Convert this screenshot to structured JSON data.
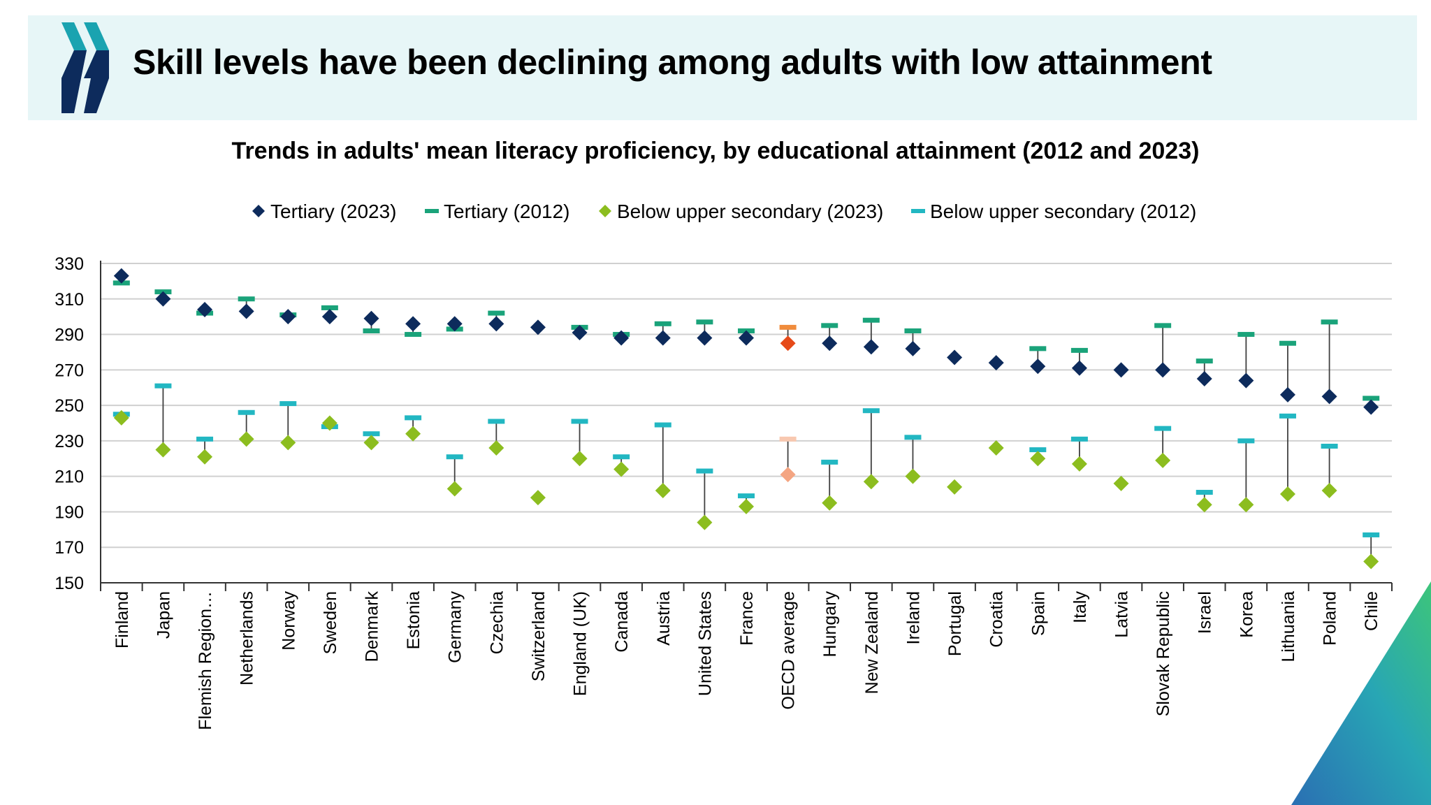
{
  "header": {
    "title": "Skill levels have been declining among adults with low attainment",
    "logo_icon": "oecd-chevrons-logo"
  },
  "colors": {
    "banner_bg": "#e7f6f7",
    "tertiary_2023": "#0d2b5c",
    "tertiary_2012": "#1aa37a",
    "below_upper_2023": "#8cbd1f",
    "below_upper_2012": "#22b7c2",
    "oecd_tertiary_2023": "#e64a19",
    "oecd_tertiary_2012": "#f08c3c",
    "oecd_below_2023": "#f4a582",
    "oecd_below_2012": "#f8c8b0"
  },
  "chart_data": {
    "type": "scatter",
    "title": "Trends in adults' mean literacy proficiency, by educational attainment (2012 and 2023)",
    "legend_position": "top",
    "grid": true,
    "ylim": [
      150,
      330
    ],
    "yticks": [
      150,
      170,
      190,
      210,
      230,
      250,
      270,
      290,
      310,
      330
    ],
    "categories": [
      "Finland",
      "Japan",
      "Flemish Region…",
      "Netherlands",
      "Norway",
      "Sweden",
      "Denmark",
      "Estonia",
      "Germany",
      "Czechia",
      "Switzerland",
      "England (UK)",
      "Canada",
      "Austria",
      "United States",
      "France",
      "OECD average",
      "Hungary",
      "New Zealand",
      "Ireland",
      "Portugal",
      "Croatia",
      "Spain",
      "Italy",
      "Latvia",
      "Slovak Republic",
      "Israel",
      "Korea",
      "Lithuania",
      "Poland",
      "Chile"
    ],
    "highlight_category": "OECD average",
    "series": [
      {
        "name": "Tertiary (2023)",
        "marker": "diamond",
        "values": [
          323,
          310,
          304,
          303,
          300,
          300,
          299,
          296,
          296,
          296,
          294,
          291,
          288,
          288,
          288,
          288,
          285,
          285,
          283,
          282,
          277,
          274,
          272,
          271,
          270,
          270,
          265,
          264,
          256,
          255,
          249
        ]
      },
      {
        "name": "Tertiary (2012)",
        "marker": "dash",
        "values": [
          319,
          314,
          302,
          310,
          301,
          305,
          292,
          290,
          293,
          302,
          null,
          294,
          290,
          296,
          297,
          292,
          294,
          295,
          298,
          292,
          null,
          null,
          282,
          281,
          null,
          295,
          275,
          290,
          285,
          297,
          254
        ]
      },
      {
        "name": "Below upper secondary (2023)",
        "marker": "diamond",
        "values": [
          243,
          225,
          221,
          231,
          229,
          240,
          229,
          234,
          203,
          226,
          198,
          220,
          214,
          202,
          184,
          193,
          211,
          195,
          207,
          210,
          204,
          226,
          220,
          217,
          206,
          219,
          194,
          194,
          200,
          202,
          162
        ]
      },
      {
        "name": "Below upper secondary (2012)",
        "marker": "dash",
        "values": [
          245,
          261,
          231,
          246,
          251,
          238,
          234,
          243,
          221,
          241,
          null,
          241,
          221,
          239,
          213,
          199,
          231,
          218,
          247,
          232,
          null,
          null,
          225,
          231,
          null,
          237,
          201,
          230,
          244,
          227,
          177
        ]
      }
    ]
  }
}
